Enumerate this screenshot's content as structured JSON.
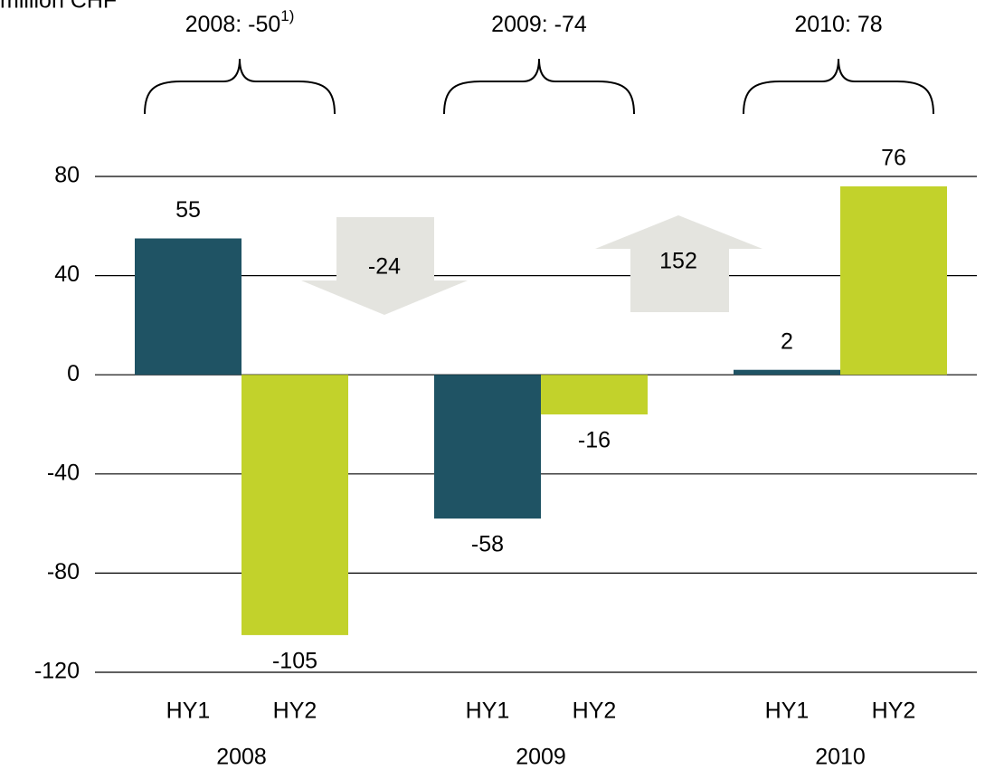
{
  "chart_data": {
    "type": "bar",
    "subtitle": "million CHF",
    "categories": [
      "HY1",
      "HY2",
      "HY1",
      "HY2",
      "HY1",
      "HY2"
    ],
    "groups": [
      "2008",
      "2009",
      "2010"
    ],
    "values": [
      55,
      -105,
      -58,
      -16,
      2,
      76
    ],
    "colors": [
      "#1f5364",
      "#c2d22b",
      "#1f5364",
      "#c2d22b",
      "#1f5364",
      "#c2d22b"
    ],
    "ylim": [
      -120,
      80
    ],
    "yticks": [
      -120,
      -80,
      -40,
      0,
      40,
      80
    ],
    "grid": true,
    "year_totals": [
      {
        "text": "2008: -50",
        "note": "1)"
      },
      {
        "text": "2009: -74"
      },
      {
        "text": "2010: 78"
      }
    ],
    "changes": [
      {
        "value": -24
      },
      {
        "value": 152
      }
    ],
    "change_color": "#e4e4df"
  }
}
